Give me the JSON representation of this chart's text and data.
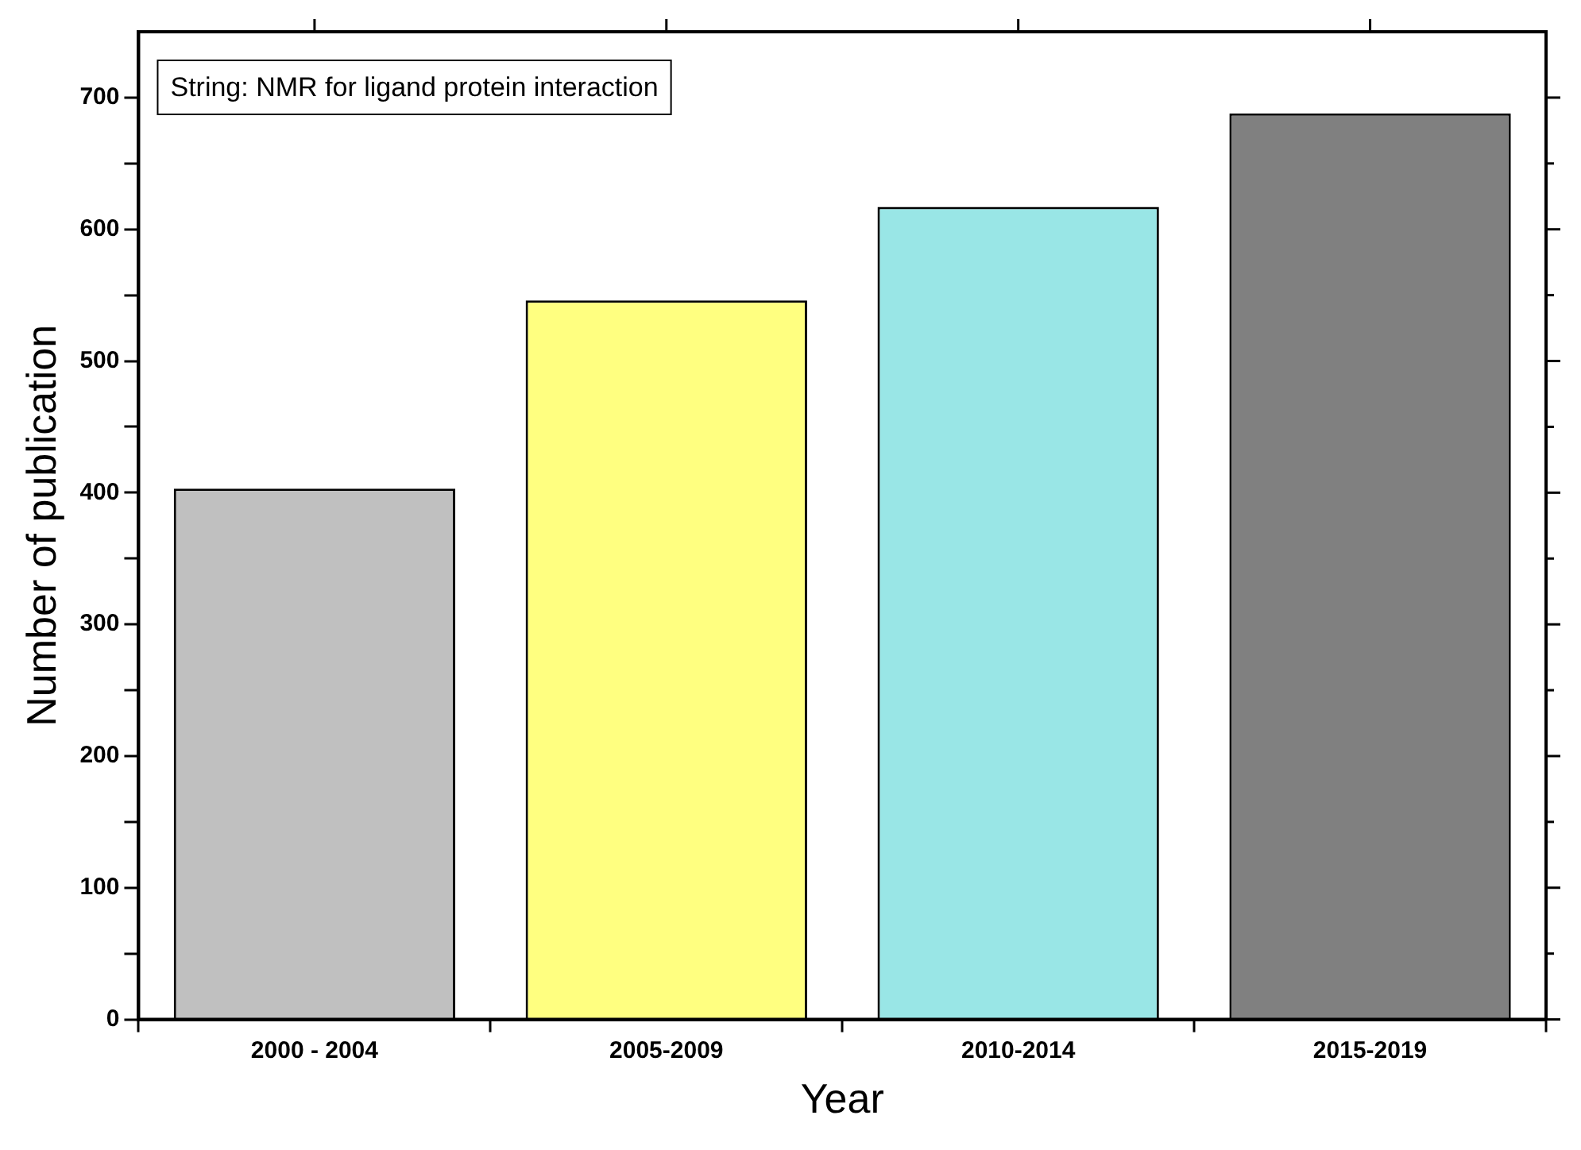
{
  "chart_data": {
    "type": "bar",
    "xlabel": "Year",
    "ylabel": "Number of publication",
    "categories": [
      "2000 - 2004",
      "2005-2009",
      "2010-2014",
      "2015-2019"
    ],
    "values": [
      403,
      546,
      617,
      688
    ],
    "colors": [
      "#c0c0c0",
      "#ffff80",
      "#99e6e6",
      "#808080"
    ],
    "ylim": [
      0,
      750
    ],
    "yticks": [
      0,
      {
        "value": 50,
        "label": null
      },
      100,
      {
        "value": 150,
        "label": null
      },
      200,
      {
        "value": 250,
        "label": null
      },
      300,
      {
        "value": 350,
        "label": null
      },
      400,
      {
        "value": 450,
        "label": null
      },
      500,
      {
        "value": 550,
        "label": null
      },
      600,
      {
        "value": 650,
        "label": null
      },
      700
    ],
    "grid": false,
    "legend": false,
    "annotations": [
      "String: NMR for ligand protein interaction"
    ]
  }
}
